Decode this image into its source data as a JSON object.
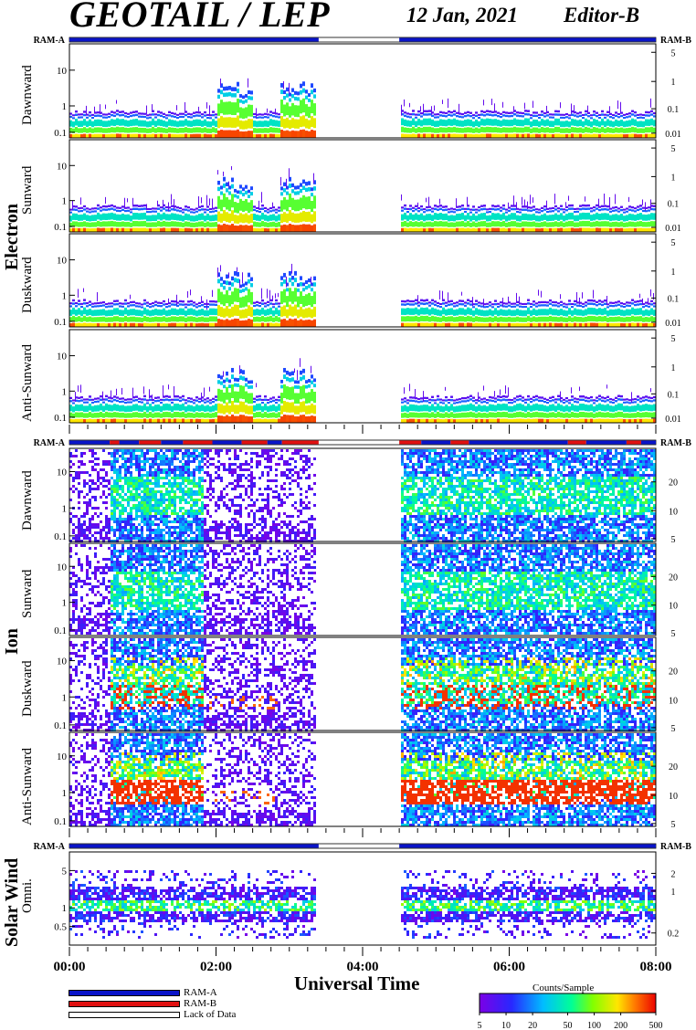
{
  "header": {
    "title": "GEOTAIL / LEP",
    "date": "12 Jan, 2021",
    "editor": "Editor-B"
  },
  "groups": {
    "electron": "Electron",
    "ion": "Ion",
    "solar_wind": "Solar Wind"
  },
  "mode_bar_labels": {
    "left": "RAM-A",
    "right": "RAM-B"
  },
  "panel_labels": {
    "e_dawn": "Dawnward",
    "e_sun": "Sunward",
    "e_dusk": "Duskward",
    "e_anti": "Anti-Sunward",
    "i_dawn": "Dawnward",
    "i_sun": "Sunward",
    "i_dusk": "Duskward",
    "i_anti": "Anti-Sunward",
    "sw": "Omni."
  },
  "x_axis": {
    "title": "Universal Time",
    "ticks": [
      "00:00",
      "02:00",
      "04:00",
      "06:00",
      "08:00"
    ]
  },
  "legend": {
    "ram_a": "RAM-A",
    "ram_b": "RAM-B",
    "lack": "Lack of Data",
    "colorbar_title": "Counts/Sample",
    "colorbar_ticks": [
      "5",
      "10",
      "20",
      "50",
      "100",
      "200",
      "500"
    ],
    "colors": {
      "ram_a": "#0a14c8",
      "ram_b": "#e01010",
      "lack": "#ffffff"
    }
  },
  "chart_data": {
    "type": "heatmap",
    "x_range_hours": [
      0,
      8
    ],
    "data_gap_hours": [
      3.4,
      4.5
    ],
    "color_scale": {
      "title": "Counts/Sample",
      "min": 5,
      "max": 500,
      "log": true
    },
    "panels": [
      {
        "id": "e_dawn",
        "group": "Electron",
        "label": "Dawnward",
        "left_ticks": [
          "10",
          "1",
          "0.1"
        ],
        "right_ticks": [
          "5",
          "1",
          "0.1",
          "0.01"
        ]
      },
      {
        "id": "e_sun",
        "group": "Electron",
        "label": "Sunward",
        "left_ticks": [
          "10",
          "1",
          "0.1"
        ],
        "right_ticks": [
          "5",
          "1",
          "0.1",
          "0.01"
        ]
      },
      {
        "id": "e_dusk",
        "group": "Electron",
        "label": "Duskward",
        "left_ticks": [
          "10",
          "1",
          "0.1"
        ],
        "right_ticks": [
          "5",
          "1",
          "0.1",
          "0.01"
        ]
      },
      {
        "id": "e_anti",
        "group": "Electron",
        "label": "Anti-Sunward",
        "left_ticks": [
          "10",
          "1",
          "0.1"
        ],
        "right_ticks": [
          "5",
          "1",
          "0.1",
          "0.01"
        ]
      },
      {
        "id": "i_dawn",
        "group": "Ion",
        "label": "Dawnward",
        "left_ticks": [
          "10",
          "1",
          "0.1"
        ],
        "right_ticks": [
          "20",
          "10",
          "5"
        ]
      },
      {
        "id": "i_sun",
        "group": "Ion",
        "label": "Sunward",
        "left_ticks": [
          "10",
          "1",
          "0.1"
        ],
        "right_ticks": [
          "20",
          "10",
          "5"
        ]
      },
      {
        "id": "i_dusk",
        "group": "Ion",
        "label": "Duskward",
        "left_ticks": [
          "10",
          "1",
          "0.1"
        ],
        "right_ticks": [
          "20",
          "10",
          "5"
        ]
      },
      {
        "id": "i_anti",
        "group": "Ion",
        "label": "Anti-Sunward",
        "left_ticks": [
          "10",
          "1",
          "0.1"
        ],
        "right_ticks": [
          "20",
          "10",
          "5"
        ]
      },
      {
        "id": "sw",
        "group": "Solar Wind",
        "label": "Omni.",
        "left_ticks": [
          "5",
          "1",
          "0.5"
        ],
        "right_ticks": [
          "2",
          "1",
          "0.2"
        ]
      }
    ]
  }
}
